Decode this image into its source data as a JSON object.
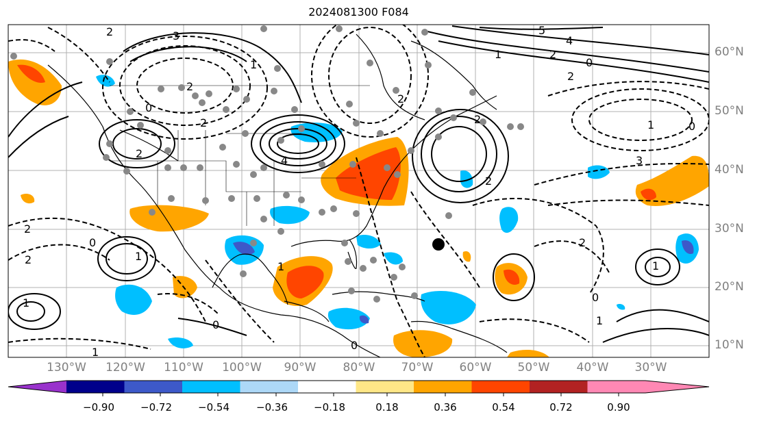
{
  "title": "2024081300 F084",
  "latitude_labels": [
    "60°N",
    "50°N",
    "40°N",
    "30°N",
    "20°N",
    "10°N"
  ],
  "longitude_labels": [
    "130°W",
    "120°W",
    "110°W",
    "100°W",
    "90°W",
    "80°W",
    "70°W",
    "60°W",
    "50°W",
    "40°W",
    "30°W"
  ],
  "contour_labels": {
    "solid": [
      "3",
      "2",
      "1",
      "5",
      "4",
      "2",
      "1",
      "2",
      "1",
      "3",
      "1",
      "1",
      "2"
    ],
    "dashed": [
      "2",
      "0",
      "2",
      "1",
      "2",
      "4",
      "2",
      "2",
      "0",
      "2",
      "2",
      "1",
      "0",
      "2",
      "1",
      "0",
      "0",
      "0",
      "1",
      "0"
    ]
  },
  "colorbar": {
    "ticks": [
      "−0.90",
      "−0.72",
      "−0.54",
      "−0.36",
      "−0.18",
      "0.18",
      "0.36",
      "0.54",
      "0.72",
      "0.90"
    ],
    "colors": [
      "#9932cc",
      "#00008b",
      "#3d59c9",
      "#00bfff",
      "#add8f7",
      "#ffffff",
      "#ffe787",
      "#ffa500",
      "#ff4500",
      "#b22222",
      "#ff88b4"
    ]
  }
}
